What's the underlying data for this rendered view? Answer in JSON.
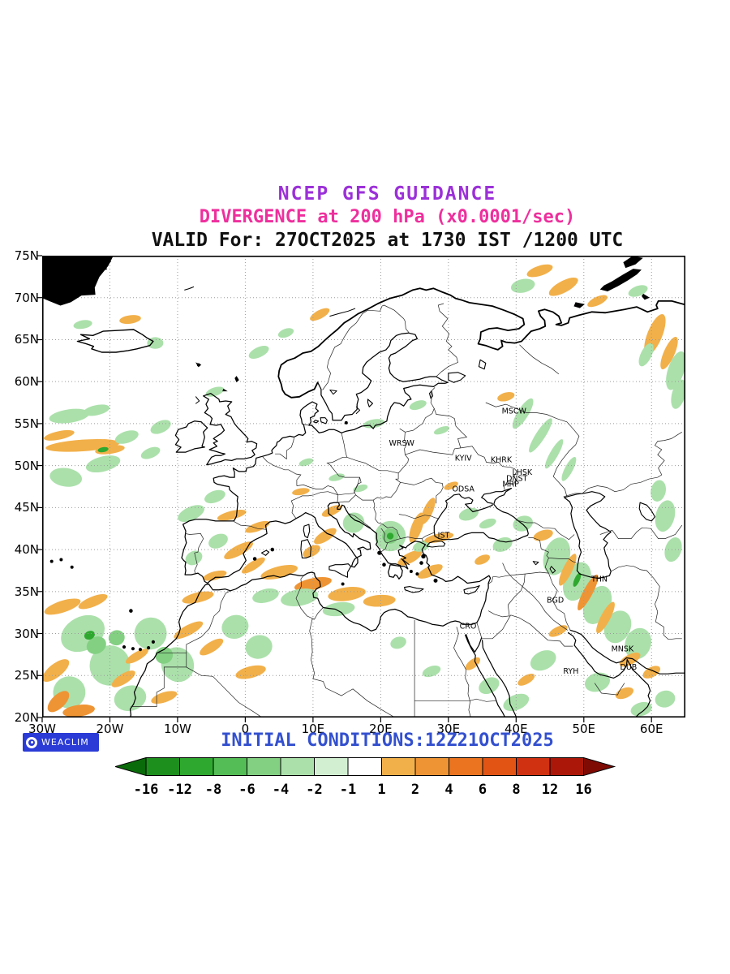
{
  "titles": {
    "line1": "NCEP GFS GUIDANCE",
    "line2": "DIVERGENCE at 200 hPa (x0.0001/sec)",
    "line3": "VALID For: 27OCT2025 at 1730 IST /1200 UTC"
  },
  "colors": {
    "title1": "#9b30d8",
    "title2": "#ee2f9d",
    "title3": "#111111",
    "footer_text": "#3350cf",
    "logo_bg": "#2a3bd6",
    "grid": "#9a9a9a",
    "coast": "#000000"
  },
  "axes": {
    "lat_labels": [
      "75N",
      "70N",
      "65N",
      "60N",
      "55N",
      "50N",
      "45N",
      "40N",
      "35N",
      "30N",
      "25N",
      "20N"
    ],
    "lon_labels": [
      "30W",
      "20W",
      "10W",
      "0",
      "10E",
      "20E",
      "30E",
      "40E",
      "50E",
      "60E"
    ]
  },
  "cities": [
    {
      "label": "MSCW",
      "lon": 39.7,
      "lat": 56.2
    },
    {
      "label": "WRSW",
      "lon": 23.1,
      "lat": 52.4
    },
    {
      "label": "KYIV",
      "lon": 32.2,
      "lat": 50.6
    },
    {
      "label": "KHRK",
      "lon": 37.8,
      "lat": 50.4
    },
    {
      "label": "LHSK",
      "lon": 40.9,
      "lat": 48.9
    },
    {
      "label": "DNST",
      "lon": 40.1,
      "lat": 48.2
    },
    {
      "label": "MRP",
      "lon": 39.2,
      "lat": 47.5
    },
    {
      "label": "ODSA",
      "lon": 32.2,
      "lat": 46.9
    },
    {
      "label": "IST",
      "lon": 29.3,
      "lat": 41.4
    },
    {
      "label": "THN",
      "lon": 52.3,
      "lat": 36.2
    },
    {
      "label": "BGD",
      "lon": 45.8,
      "lat": 33.7
    },
    {
      "label": "CRO",
      "lon": 32.9,
      "lat": 30.6
    },
    {
      "label": "RYH",
      "lon": 48.1,
      "lat": 25.2
    },
    {
      "label": "MNSK",
      "lon": 55.7,
      "lat": 27.9
    },
    {
      "label": "DUB",
      "lon": 56.6,
      "lat": 25.7
    }
  ],
  "footer": {
    "initial_conditions": "INITIAL CONDITIONS:12Z21OCT2025",
    "logo_label": "WEACLIM"
  },
  "colorbar": {
    "tick_labels": [
      "-16",
      "-12",
      "-8",
      "-6",
      "-4",
      "-2",
      "-1",
      "1",
      "2",
      "4",
      "6",
      "8",
      "12",
      "16"
    ]
  },
  "chart_data": {
    "type": "heatmap",
    "title": "DIVERGENCE at 200 hPa (x0.0001/sec)",
    "model": "NCEP GFS GUIDANCE",
    "valid_time": "27OCT2025 at 1730 IST /1200 UTC",
    "initial_conditions": "12Z21OCT2025",
    "units": "x0.0001/sec",
    "map_extent": {
      "lon_min": -30,
      "lon_max": 65,
      "lat_min": 20,
      "lat_max": 75
    },
    "lon_ticks": [
      "30W",
      "20W",
      "10W",
      "0",
      "10E",
      "20E",
      "30E",
      "40E",
      "50E",
      "60E"
    ],
    "lat_ticks": [
      "75N",
      "70N",
      "65N",
      "60N",
      "55N",
      "50N",
      "45N",
      "40N",
      "35N",
      "30N",
      "25N",
      "20N"
    ],
    "colorbar_levels": [
      -16,
      -12,
      -8,
      -6,
      -4,
      -2,
      -1,
      1,
      2,
      4,
      6,
      8,
      12,
      16
    ],
    "colorbar_colors": [
      "#0a6b0a",
      "#1d8f1d",
      "#2fa82f",
      "#55bd55",
      "#83d083",
      "#abe0ab",
      "#d2efd2",
      "#ffffff",
      "#f2b04a",
      "#ef9434",
      "#ea7420",
      "#e25414",
      "#d03110",
      "#ab1708",
      "#7e0b04"
    ],
    "legend_position": "bottom",
    "grid": "dotted",
    "shaded_regions_qualitative": [
      {
        "region": "NE Atlantic 48-56N",
        "sign": "mixed",
        "approx_values": "-2 to +2"
      },
      {
        "region": "NW Africa / Canary sector 20-34N",
        "sign": "mixed",
        "approx_values": "-4 to +4"
      },
      {
        "region": "Central Mediterranean 33-37N",
        "sign": "positive",
        "approx_values": "+1 to +4"
      },
      {
        "region": "Balkans 39-44N",
        "sign": "negative",
        "approx_values": "-4 to -1"
      },
      {
        "region": "Caucasus / Iran 25-44N",
        "sign": "mixed",
        "approx_values": "-4 to +4"
      },
      {
        "region": "Barents / Novaya Zemlya",
        "sign": "positive",
        "approx_values": "+1 to +2"
      },
      {
        "region": "Western Russia 49-58N",
        "sign": "negative",
        "approx_values": "-2 to -1"
      }
    ]
  }
}
